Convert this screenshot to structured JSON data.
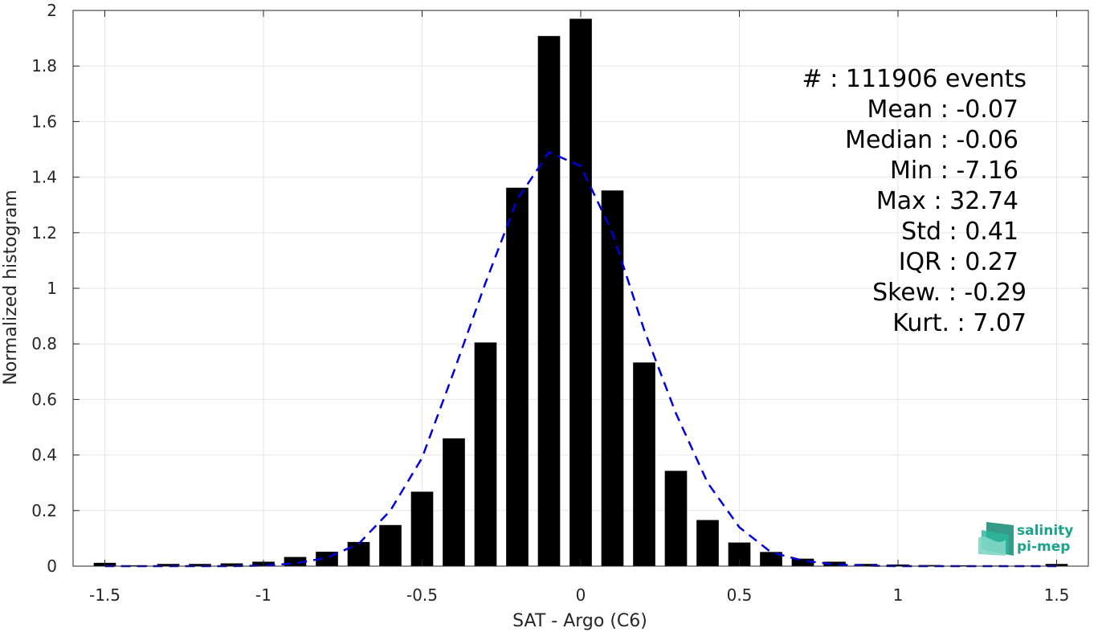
{
  "chart_data": {
    "type": "bar",
    "xlabel": "SAT - Argo (C6)",
    "ylabel": "Normalized histogram",
    "xlim": [
      -1.6,
      1.6
    ],
    "ylim": [
      0,
      2
    ],
    "grid": true,
    "x_ticks": [
      -1.5,
      -1,
      -0.5,
      0,
      0.5,
      1,
      1.5
    ],
    "x_tick_labels": [
      "-1.5",
      "-1",
      "-0.5",
      "0",
      "0.5",
      "1",
      "1.5"
    ],
    "y_ticks": [
      0,
      0.2,
      0.4,
      0.6,
      0.8,
      1,
      1.2,
      1.4,
      1.6,
      1.8,
      2
    ],
    "y_tick_labels": [
      "0",
      "0.2",
      "0.4",
      "0.6",
      "0.8",
      "1",
      "1.2",
      "1.4",
      "1.6",
      "1.8",
      "2"
    ],
    "bar_width": 0.07,
    "bars": {
      "name": "histogram",
      "color": "#000000",
      "x": [
        -1.5,
        -1.4,
        -1.3,
        -1.2,
        -1.1,
        -1.0,
        -0.9,
        -0.8,
        -0.7,
        -0.6,
        -0.5,
        -0.4,
        -0.3,
        -0.2,
        -0.1,
        0.0,
        0.1,
        0.2,
        0.3,
        0.4,
        0.5,
        0.6,
        0.7,
        0.8,
        0.9,
        1.0,
        1.1,
        1.2,
        1.3,
        1.4,
        1.5
      ],
      "values": [
        0.012,
        0.003,
        0.008,
        0.008,
        0.01,
        0.016,
        0.033,
        0.052,
        0.087,
        0.148,
        0.268,
        0.46,
        0.805,
        1.362,
        1.908,
        1.97,
        1.352,
        0.733,
        0.343,
        0.166,
        0.085,
        0.051,
        0.027,
        0.016,
        0.008,
        0.006,
        0.004,
        0.003,
        0.002,
        0.002,
        0.008
      ]
    },
    "fit": {
      "name": "gaussian fit",
      "color": "#0000dd",
      "style": "dashed",
      "x": [
        -1.5,
        -1.4,
        -1.3,
        -1.2,
        -1.1,
        -1.0,
        -0.9,
        -0.8,
        -0.7,
        -0.6,
        -0.5,
        -0.4,
        -0.3,
        -0.2,
        -0.1,
        0.0,
        0.1,
        0.2,
        0.3,
        0.4,
        0.5,
        0.6,
        0.7,
        0.8,
        0.9,
        1.0,
        1.1,
        1.2,
        1.3,
        1.4,
        1.5
      ],
      "values": [
        0.0,
        0.0,
        0.0,
        0.0,
        0.0,
        0.002,
        0.01,
        0.03,
        0.08,
        0.2,
        0.39,
        0.7,
        1.02,
        1.32,
        1.49,
        1.44,
        1.2,
        0.85,
        0.55,
        0.3,
        0.14,
        0.05,
        0.02,
        0.006,
        0.002,
        0.0,
        0.0,
        0.0,
        0.0,
        0.0,
        0.0
      ]
    },
    "annotations": [
      "#  : 111906 events",
      "Mean : -0.07",
      "Median : -0.06",
      "Min : -7.16",
      "Max : 32.74",
      "Std : 0.41",
      "IQR : 0.27",
      "Skew. : -0.29",
      "Kurt. : 7.07"
    ]
  },
  "logo": {
    "line1": "salinity",
    "line2": "pi-mep",
    "color": "#1aa38a"
  }
}
